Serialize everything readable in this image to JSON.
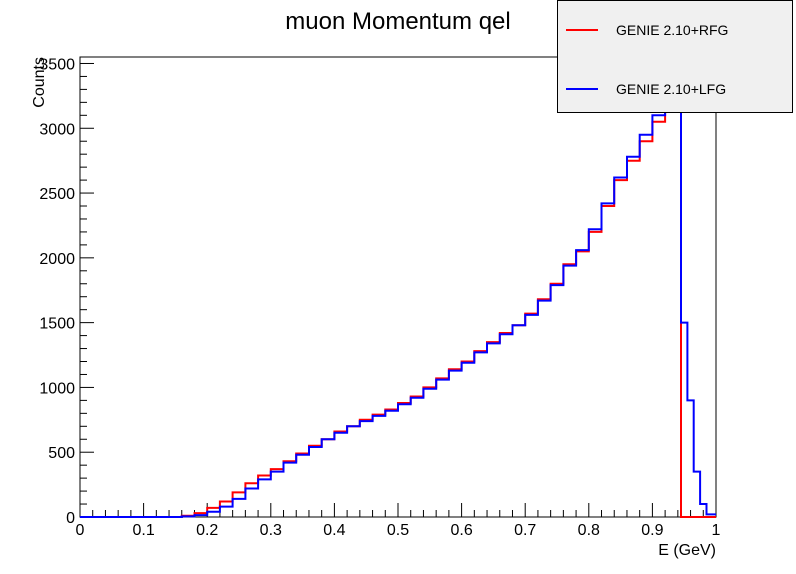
{
  "chart_data": {
    "type": "line",
    "title": "muon Momentum qel",
    "xlabel": "E (GeV)",
    "ylabel": "Counts",
    "xlim": [
      0,
      1
    ],
    "ylim": [
      0,
      3550
    ],
    "x_ticks": [
      "0",
      "0.1",
      "0.2",
      "0.3",
      "0.4",
      "0.5",
      "0.6",
      "0.7",
      "0.8",
      "0.9",
      "1"
    ],
    "y_ticks": [
      "0",
      "500",
      "1000",
      "1500",
      "2000",
      "2500",
      "3000",
      "3500"
    ],
    "x_tick_values": [
      0,
      0.1,
      0.2,
      0.3,
      0.4,
      0.5,
      0.6,
      0.7,
      0.8,
      0.9,
      1.0
    ],
    "y_tick_values": [
      0,
      500,
      1000,
      1500,
      2000,
      2500,
      3000,
      3500
    ],
    "grid": false,
    "legend_position": "top-right",
    "x": [
      0.05,
      0.15,
      0.17,
      0.19,
      0.21,
      0.23,
      0.25,
      0.27,
      0.29,
      0.31,
      0.33,
      0.35,
      0.37,
      0.39,
      0.41,
      0.43,
      0.45,
      0.47,
      0.49,
      0.51,
      0.53,
      0.55,
      0.57,
      0.59,
      0.61,
      0.63,
      0.65,
      0.67,
      0.69,
      0.71,
      0.73,
      0.75,
      0.77,
      0.79,
      0.81,
      0.83,
      0.85,
      0.87,
      0.89,
      0.91,
      0.93,
      0.94,
      0.95,
      0.96,
      0.97,
      0.98,
      0.99
    ],
    "series": [
      {
        "name": "GENIE 2.10+RFG",
        "color": "#ff0000",
        "values": [
          0,
          0,
          10,
          30,
          70,
          120,
          190,
          260,
          320,
          370,
          430,
          490,
          550,
          600,
          660,
          700,
          750,
          790,
          830,
          880,
          930,
          1000,
          1070,
          1140,
          1200,
          1280,
          1350,
          1420,
          1480,
          1570,
          1680,
          1800,
          1950,
          2050,
          2200,
          2400,
          2600,
          2750,
          2900,
          3050,
          3200,
          3300,
          0,
          0,
          0,
          0,
          0
        ]
      },
      {
        "name": "GENIE 2.10+LFG",
        "color": "#0000ff",
        "values": [
          0,
          0,
          5,
          15,
          40,
          80,
          140,
          220,
          290,
          350,
          420,
          480,
          540,
          600,
          650,
          700,
          740,
          780,
          820,
          870,
          920,
          990,
          1060,
          1130,
          1190,
          1270,
          1340,
          1410,
          1480,
          1560,
          1670,
          1790,
          1940,
          2060,
          2220,
          2420,
          2620,
          2780,
          2950,
          3100,
          3250,
          3400,
          1500,
          900,
          350,
          100,
          20
        ]
      }
    ]
  }
}
